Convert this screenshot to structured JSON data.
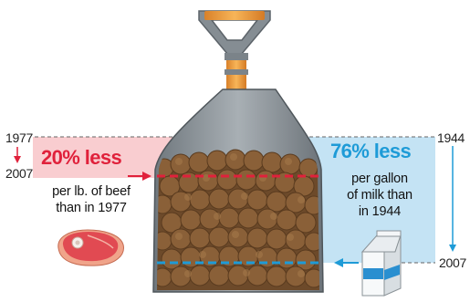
{
  "colors": {
    "beef_accent": "#e0213b",
    "beef_panel": "#f9cdd0",
    "milk_accent": "#1e9bd7",
    "milk_panel": "#c4e3f4",
    "shovel_metal": "#8f979d",
    "shovel_handle": "#f2a33a",
    "manure": "#7a5531"
  },
  "beef": {
    "year_start": "1977",
    "year_end": "2007",
    "headline": "20% less",
    "caption_line1": "per lb. of beef",
    "caption_line2": "than in 1977",
    "icon": "steak-icon"
  },
  "milk": {
    "year_start": "1944",
    "year_end": "2007",
    "headline": "76% less",
    "caption_line1": "per gallon",
    "caption_line2": "of milk than",
    "caption_line3": "in 1944",
    "icon": "milk-carton-icon"
  }
}
